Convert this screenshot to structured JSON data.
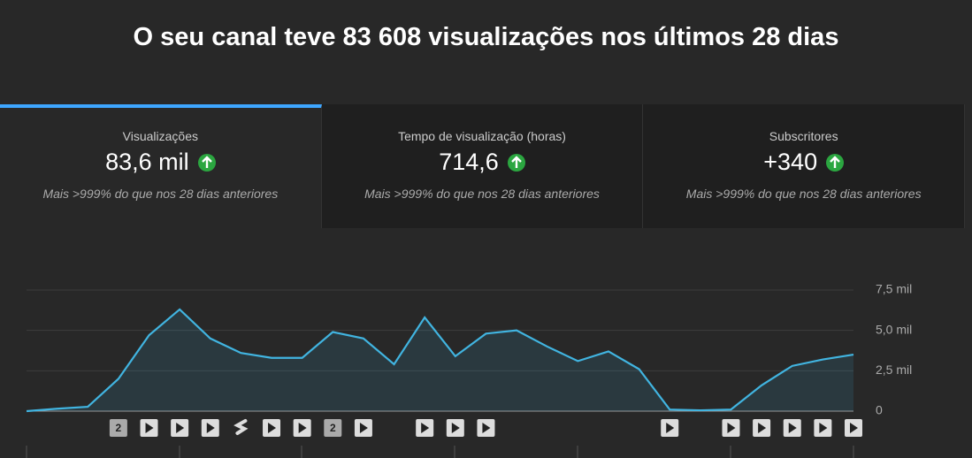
{
  "header": {
    "title": "O seu canal teve 83 608 visualizações nos últimos 28 dias"
  },
  "tabs": [
    {
      "label": "Visualizações",
      "value": "83,6 mil",
      "comparison": "Mais >999% do que nos 28 dias anteriores"
    },
    {
      "label": "Tempo de visualização (horas)",
      "value": "714,6",
      "comparison": "Mais >999% do que nos 28 dias anteriores"
    },
    {
      "label": "Subscritores",
      "value": "+340",
      "comparison": "Mais >999% do que nos 28 dias anteriores"
    }
  ],
  "chart_data": {
    "type": "line",
    "color": "#41b4e0",
    "values": [
      0,
      0.15,
      0.27,
      2.0,
      4.7,
      6.3,
      4.5,
      3.6,
      3.3,
      3.3,
      4.9,
      4.5,
      2.9,
      5.8,
      3.4,
      4.8,
      5.0,
      4.0,
      3.1,
      3.7,
      2.6,
      0.1,
      0.05,
      0.1,
      1.6,
      2.8,
      3.2,
      3.5
    ],
    "ylim": [
      0,
      7.5
    ],
    "yticks": [
      0,
      {
        "value": 2.5,
        "label": "2,5 mil"
      },
      {
        "value": 5.0,
        "label": "5,0 mil"
      },
      {
        "value": 7.5,
        "label": "7,5 mil"
      }
    ],
    "grid": true,
    "marker_labels": [
      "2",
      "2"
    ]
  }
}
